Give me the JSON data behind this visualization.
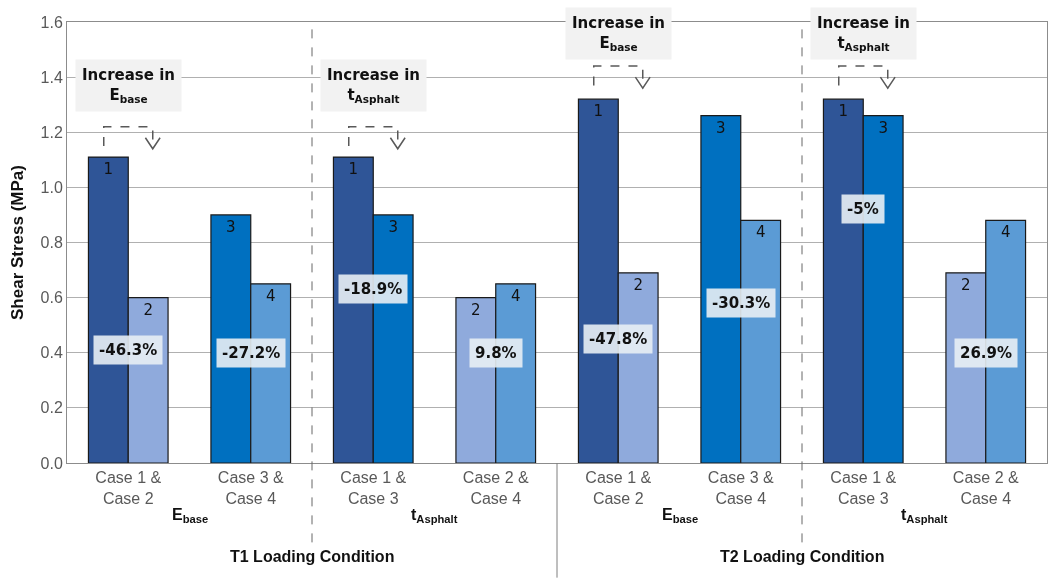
{
  "chart_data": {
    "type": "bar",
    "ylabel": "Shear Stress (MPa)",
    "categories": [
      "Case 1 &\nCase 2",
      "Case 3 &\nCase 4",
      "Case 1 &\nCase 3",
      "Case 2 &\nCase 4",
      "Case 1 &\nCase 2",
      "Case 3 &\nCase 4",
      "Case 1 &\nCase 3",
      "Case 2 &\nCase 4"
    ],
    "series": [
      {
        "name": "1",
        "color": "#2f5597",
        "values": [
          1.11,
          null,
          1.11,
          null,
          1.32,
          null,
          1.32,
          null
        ]
      },
      {
        "name": "2",
        "color": "#8faadc",
        "values": [
          0.6,
          null,
          null,
          0.6,
          0.69,
          null,
          null,
          0.69
        ]
      },
      {
        "name": "3",
        "color": "#0070c0",
        "values": [
          null,
          0.9,
          0.9,
          null,
          null,
          1.26,
          1.26,
          null
        ]
      },
      {
        "name": "4",
        "color": "#5b9bd5",
        "values": [
          null,
          0.65,
          null,
          0.65,
          null,
          0.88,
          null,
          0.88
        ]
      }
    ],
    "ylim": [
      0,
      1.6
    ],
    "yticks": [
      {
        "value": 0,
        "label": "0.0"
      },
      {
        "value": 0.2,
        "label": "0.2"
      },
      {
        "value": 0.4,
        "label": "0.4"
      },
      {
        "value": 0.6,
        "label": "0.6"
      },
      {
        "value": 0.8,
        "label": "0.8"
      },
      {
        "value": 1,
        "label": "1.0"
      },
      {
        "value": 1.2,
        "label": "1.2"
      },
      {
        "value": 1.4,
        "label": "1.4"
      },
      {
        "value": 1.6,
        "label": "1.6"
      }
    ],
    "grid": "y",
    "legend": false,
    "annotations": [
      "-46.3%",
      "-27.2%",
      "-18.9%",
      "9.8%",
      "-47.8%",
      "-30.3%",
      "-5%",
      "26.9%",
      "Increase in\nE$_{base}$",
      "Increase in\nt$_{Asphalt}$",
      "Increase in\nE$_{base}$",
      "Increase in\nt$_{Asphalt}$",
      "E$_{base}$",
      "t$_{Asphalt}$",
      "E$_{base}$",
      "t$_{Asphalt}$",
      "T1 Loading Condition",
      "T2 Loading Condition"
    ]
  }
}
